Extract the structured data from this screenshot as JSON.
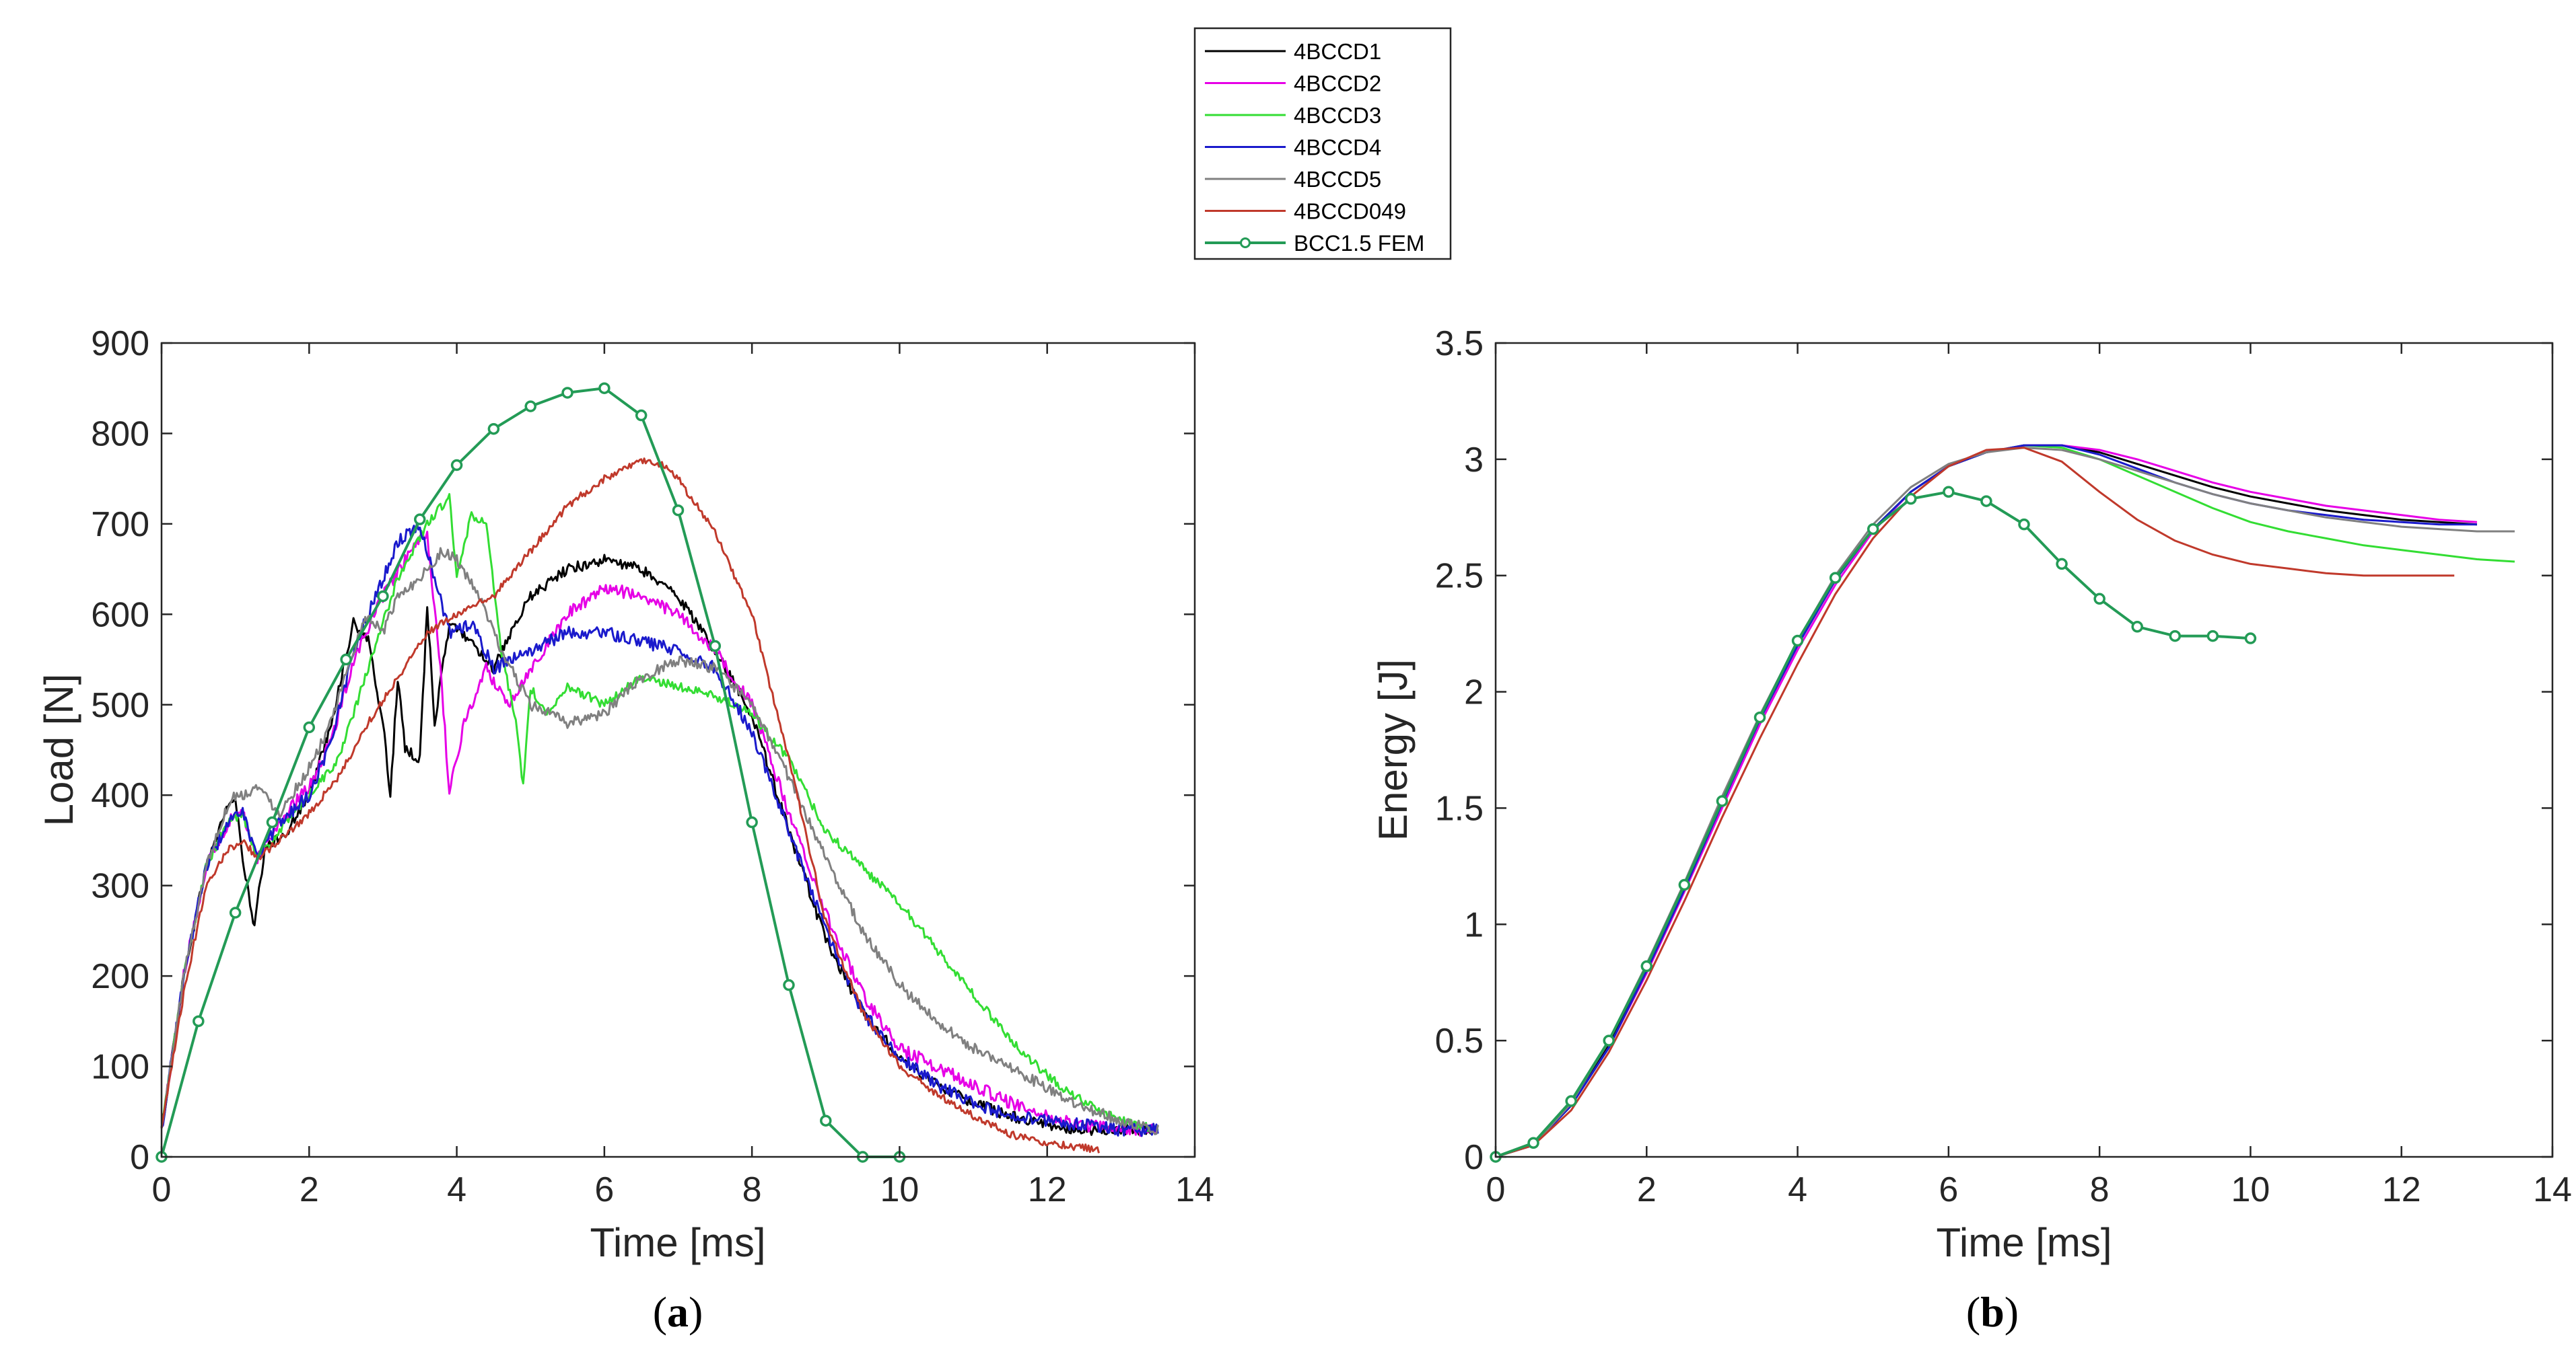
{
  "legend": [
    {
      "name": "4BCCD1",
      "color": "#000000",
      "marker": false
    },
    {
      "name": "4BCCD2",
      "color": "#e600e6",
      "marker": false
    },
    {
      "name": "4BCCD3",
      "color": "#33dd33",
      "marker": false
    },
    {
      "name": "4BCCD4",
      "color": "#1a1acc",
      "marker": false
    },
    {
      "name": "4BCCD5",
      "color": "#808080",
      "marker": false
    },
    {
      "name": "4BCCD049",
      "color": "#c0392b",
      "marker": false
    },
    {
      "name": "BCC1.5 FEM",
      "color": "#239b56",
      "marker": true
    }
  ],
  "captions": {
    "a": {
      "open": "(",
      "letter": "a",
      "close": ")"
    },
    "b": {
      "open": "(",
      "letter": "b",
      "close": ")"
    }
  },
  "chart_data": [
    {
      "id": "a",
      "type": "line",
      "xlabel": "Time [ms]",
      "ylabel": "Load [N]",
      "xlim": [
        0,
        14
      ],
      "ylim": [
        0,
        900
      ],
      "xticks": [
        0,
        2,
        4,
        6,
        8,
        10,
        12,
        14
      ],
      "yticks": [
        0,
        100,
        200,
        300,
        400,
        500,
        600,
        700,
        800,
        900
      ],
      "grid": false,
      "series": [
        {
          "name": "4BCCD1",
          "color": "#000000",
          "noise": 6,
          "x": [
            0,
            0.3,
            0.6,
            0.9,
            1.0,
            1.1,
            1.2,
            1.25,
            1.4,
            1.7,
            2.0,
            2.3,
            2.6,
            2.8,
            3.0,
            3.1,
            3.2,
            3.3,
            3.5,
            3.6,
            3.7,
            3.9,
            4.2,
            4.5,
            5.0,
            5.5,
            6.0,
            6.5,
            7.0,
            7.5,
            8.0,
            8.5,
            9.0,
            9.5,
            10.0,
            10.5,
            11.0,
            11.5,
            12.0,
            12.5,
            13.0,
            13.5
          ],
          "y": [
            30,
            200,
            320,
            390,
            395,
            330,
            280,
            250,
            340,
            360,
            400,
            480,
            590,
            570,
            480,
            400,
            530,
            450,
            440,
            610,
            480,
            590,
            570,
            540,
            620,
            650,
            660,
            650,
            620,
            560,
            490,
            360,
            240,
            160,
            110,
            80,
            60,
            45,
            35,
            30,
            30,
            30
          ]
        },
        {
          "name": "4BCCD2",
          "color": "#e600e6",
          "noise": 7,
          "x": [
            0,
            0.3,
            0.6,
            0.9,
            1.1,
            1.3,
            1.6,
            2.0,
            2.3,
            2.6,
            3.0,
            3.3,
            3.6,
            3.8,
            3.9,
            4.1,
            4.4,
            4.7,
            5.0,
            5.5,
            6.0,
            6.5,
            7.0,
            7.5,
            8.0,
            8.5,
            9.0,
            9.5,
            10.0,
            10.5,
            11.0,
            11.5,
            12.0,
            12.5,
            13.0,
            13.5
          ],
          "y": [
            30,
            200,
            320,
            370,
            380,
            330,
            370,
            410,
            460,
            550,
            620,
            660,
            690,
            520,
            400,
            480,
            540,
            500,
            540,
            600,
            630,
            620,
            600,
            560,
            500,
            380,
            270,
            180,
            120,
            100,
            80,
            60,
            45,
            35,
            30,
            30
          ]
        },
        {
          "name": "4BCCD3",
          "color": "#33dd33",
          "noise": 5,
          "x": [
            0,
            0.3,
            0.6,
            0.9,
            1.1,
            1.3,
            1.6,
            2.0,
            2.4,
            2.8,
            3.2,
            3.6,
            3.9,
            4.0,
            4.2,
            4.4,
            4.6,
            4.8,
            4.9,
            5.0,
            5.2,
            5.5,
            6.0,
            6.5,
            7.0,
            7.5,
            8.0,
            8.5,
            9.0,
            9.5,
            10.0,
            10.5,
            11.0,
            11.5,
            12.0,
            12.5,
            13.0,
            13.5
          ],
          "y": [
            30,
            200,
            320,
            370,
            380,
            330,
            360,
            400,
            440,
            540,
            640,
            700,
            730,
            640,
            710,
            700,
            560,
            480,
            410,
            520,
            490,
            520,
            500,
            530,
            520,
            510,
            490,
            440,
            360,
            320,
            280,
            230,
            180,
            130,
            90,
            60,
            40,
            30
          ]
        },
        {
          "name": "4BCCD4",
          "color": "#1a1acc",
          "noise": 7,
          "x": [
            0,
            0.3,
            0.6,
            0.9,
            1.1,
            1.3,
            1.6,
            2.0,
            2.3,
            2.6,
            2.9,
            3.2,
            3.5,
            3.7,
            3.9,
            4.2,
            4.5,
            5.0,
            5.5,
            6.0,
            6.5,
            7.0,
            7.5,
            8.0,
            8.5,
            9.0,
            9.5,
            10.0,
            10.5,
            11.0,
            11.5,
            12.0,
            12.5,
            13.0,
            13.5
          ],
          "y": [
            30,
            200,
            320,
            370,
            380,
            330,
            370,
            400,
            460,
            560,
            620,
            680,
            700,
            640,
            580,
            590,
            540,
            560,
            580,
            580,
            570,
            560,
            540,
            470,
            360,
            250,
            160,
            110,
            80,
            60,
            45,
            40,
            35,
            30,
            30
          ]
        },
        {
          "name": "4BCCD5",
          "color": "#808080",
          "noise": 6,
          "x": [
            0,
            0.3,
            0.6,
            0.9,
            1.0,
            1.1,
            1.3,
            1.6,
            2.0,
            2.3,
            2.6,
            2.8,
            3.0,
            3.2,
            3.5,
            3.8,
            4.0,
            4.3,
            4.6,
            5.0,
            5.5,
            6.0,
            6.5,
            7.0,
            7.5,
            8.0,
            8.5,
            9.0,
            9.5,
            10.0,
            10.5,
            11.0,
            11.5,
            12.0,
            12.5,
            13.0,
            13.5
          ],
          "y": [
            30,
            200,
            320,
            390,
            400,
            400,
            410,
            380,
            430,
            480,
            560,
            600,
            580,
            620,
            640,
            670,
            660,
            620,
            560,
            500,
            480,
            490,
            530,
            550,
            540,
            500,
            420,
            330,
            250,
            190,
            150,
            120,
            100,
            75,
            55,
            40,
            30
          ]
        },
        {
          "name": "4BCCD049",
          "color": "#c0392b",
          "noise": 4,
          "x": [
            0,
            0.3,
            0.6,
            0.9,
            1.1,
            1.3,
            1.6,
            2.0,
            2.4,
            2.8,
            3.2,
            3.6,
            4.0,
            4.5,
            5.0,
            5.5,
            6.0,
            6.5,
            6.8,
            7.0,
            7.5,
            8.0,
            8.5,
            9.0,
            9.5,
            10.0,
            10.5,
            11.0,
            11.5,
            12.0,
            12.5,
            12.7
          ],
          "y": [
            30,
            180,
            300,
            340,
            350,
            330,
            350,
            380,
            420,
            480,
            530,
            580,
            600,
            620,
            670,
            720,
            750,
            770,
            765,
            750,
            690,
            600,
            440,
            260,
            160,
            100,
            70,
            45,
            25,
            15,
            10,
            8
          ]
        },
        {
          "name": "BCC1.5 FEM",
          "color": "#239b56",
          "noise": 0,
          "marker": true,
          "x": [
            0,
            0.5,
            1.0,
            1.5,
            2.0,
            2.5,
            3.0,
            3.5,
            4.0,
            4.5,
            5.0,
            5.5,
            6.0,
            6.5,
            7.0,
            7.5,
            8.0,
            8.5,
            9.0,
            9.5,
            10.0
          ],
          "y": [
            0,
            150,
            270,
            370,
            475,
            550,
            620,
            705,
            765,
            805,
            830,
            845,
            850,
            820,
            715,
            565,
            370,
            190,
            40,
            0,
            0
          ]
        }
      ]
    },
    {
      "id": "b",
      "type": "line",
      "xlabel": "Time [ms]",
      "ylabel": "Energy [J]",
      "xlim": [
        0,
        14
      ],
      "ylim": [
        0,
        3.5
      ],
      "xticks": [
        0,
        2,
        4,
        6,
        8,
        10,
        12,
        14
      ],
      "yticks": [
        0,
        0.5,
        1,
        1.5,
        2,
        2.5,
        3,
        3.5
      ],
      "grid": false,
      "series": [
        {
          "name": "4BCCD1",
          "color": "#000000",
          "noise": 0,
          "x": [
            0,
            0.5,
            1.0,
            1.5,
            2.0,
            2.5,
            3.0,
            3.5,
            4.0,
            4.5,
            5.0,
            5.5,
            6.0,
            6.5,
            7.0,
            7.5,
            8.0,
            8.5,
            9.0,
            9.5,
            10.0,
            10.5,
            11.0,
            11.5,
            12.0,
            12.5,
            13.0
          ],
          "y": [
            0,
            0.05,
            0.22,
            0.48,
            0.8,
            1.15,
            1.52,
            1.88,
            2.2,
            2.48,
            2.7,
            2.86,
            2.97,
            3.03,
            3.06,
            3.06,
            3.03,
            2.98,
            2.93,
            2.88,
            2.84,
            2.81,
            2.78,
            2.76,
            2.74,
            2.73,
            2.72
          ]
        },
        {
          "name": "4BCCD2",
          "color": "#e600e6",
          "noise": 0,
          "x": [
            0,
            0.5,
            1.0,
            1.5,
            2.0,
            2.5,
            3.0,
            3.5,
            4.0,
            4.5,
            5.0,
            5.5,
            6.0,
            6.5,
            7.0,
            7.5,
            8.0,
            8.5,
            9.0,
            9.5,
            10.0,
            10.5,
            11.0,
            11.5,
            12.0,
            12.5,
            13.0
          ],
          "y": [
            0,
            0.05,
            0.22,
            0.47,
            0.79,
            1.14,
            1.5,
            1.86,
            2.18,
            2.46,
            2.69,
            2.86,
            2.97,
            3.03,
            3.06,
            3.06,
            3.04,
            3.0,
            2.95,
            2.9,
            2.86,
            2.83,
            2.8,
            2.78,
            2.76,
            2.74,
            2.73
          ]
        },
        {
          "name": "4BCCD3",
          "color": "#33dd33",
          "noise": 0,
          "x": [
            0,
            0.5,
            1.0,
            1.5,
            2.0,
            2.5,
            3.0,
            3.5,
            4.0,
            4.5,
            5.0,
            5.5,
            6.0,
            6.5,
            7.0,
            7.5,
            8.0,
            8.5,
            9.0,
            9.5,
            10.0,
            10.5,
            11.0,
            11.5,
            12.0,
            12.5,
            13.0,
            13.5
          ],
          "y": [
            0,
            0.05,
            0.22,
            0.47,
            0.8,
            1.15,
            1.52,
            1.88,
            2.2,
            2.48,
            2.7,
            2.86,
            2.97,
            3.03,
            3.06,
            3.05,
            3.0,
            2.93,
            2.86,
            2.79,
            2.73,
            2.69,
            2.66,
            2.63,
            2.61,
            2.59,
            2.57,
            2.56
          ]
        },
        {
          "name": "4BCCD4",
          "color": "#1a1acc",
          "noise": 0,
          "x": [
            0,
            0.5,
            1.0,
            1.5,
            2.0,
            2.5,
            3.0,
            3.5,
            4.0,
            4.5,
            5.0,
            5.5,
            6.0,
            6.5,
            7.0,
            7.5,
            8.0,
            8.5,
            9.0,
            9.5,
            10.0,
            10.5,
            11.0,
            11.5,
            12.0,
            12.5,
            13.0
          ],
          "y": [
            0,
            0.05,
            0.22,
            0.47,
            0.8,
            1.15,
            1.52,
            1.88,
            2.2,
            2.48,
            2.7,
            2.86,
            2.97,
            3.03,
            3.06,
            3.06,
            3.02,
            2.96,
            2.9,
            2.85,
            2.81,
            2.78,
            2.76,
            2.74,
            2.73,
            2.72,
            2.72
          ]
        },
        {
          "name": "4BCCD5",
          "color": "#808080",
          "noise": 0,
          "x": [
            0,
            0.5,
            1.0,
            1.5,
            2.0,
            2.5,
            3.0,
            3.5,
            4.0,
            4.5,
            5.0,
            5.5,
            6.0,
            6.5,
            7.0,
            7.5,
            8.0,
            8.5,
            9.0,
            9.5,
            10.0,
            10.5,
            11.0,
            11.5,
            12.0,
            12.5,
            13.0,
            13.5
          ],
          "y": [
            0,
            0.05,
            0.23,
            0.5,
            0.83,
            1.18,
            1.55,
            1.9,
            2.22,
            2.5,
            2.72,
            2.88,
            2.98,
            3.03,
            3.05,
            3.04,
            3.0,
            2.95,
            2.9,
            2.85,
            2.81,
            2.78,
            2.75,
            2.73,
            2.71,
            2.7,
            2.69,
            2.69
          ]
        },
        {
          "name": "4BCCD049",
          "color": "#c0392b",
          "noise": 0,
          "x": [
            0,
            0.5,
            1.0,
            1.5,
            2.0,
            2.5,
            3.0,
            3.5,
            4.0,
            4.5,
            5.0,
            5.5,
            6.0,
            6.5,
            7.0,
            7.5,
            8.0,
            8.5,
            9.0,
            9.5,
            10.0,
            10.5,
            11.0,
            11.5,
            12.0,
            12.5,
            12.7
          ],
          "y": [
            0,
            0.05,
            0.2,
            0.45,
            0.76,
            1.1,
            1.46,
            1.8,
            2.12,
            2.42,
            2.66,
            2.84,
            2.97,
            3.04,
            3.05,
            2.99,
            2.86,
            2.74,
            2.65,
            2.59,
            2.55,
            2.53,
            2.51,
            2.5,
            2.5,
            2.5,
            2.5
          ]
        },
        {
          "name": "BCC1.5 FEM",
          "color": "#239b56",
          "noise": 0,
          "marker": true,
          "x": [
            0,
            0.5,
            1.0,
            1.5,
            2.0,
            2.5,
            3.0,
            3.5,
            4.0,
            4.5,
            5.0,
            5.5,
            6.0,
            6.5,
            7.0,
            7.5,
            8.0,
            8.5,
            9.0,
            9.5,
            10.0
          ],
          "y": [
            0,
            0.06,
            0.24,
            0.5,
            0.82,
            1.17,
            1.53,
            1.89,
            2.22,
            2.49,
            2.7,
            2.83,
            2.86,
            2.82,
            2.72,
            2.55,
            2.4,
            2.28,
            2.24,
            2.24,
            2.23
          ]
        }
      ]
    }
  ]
}
